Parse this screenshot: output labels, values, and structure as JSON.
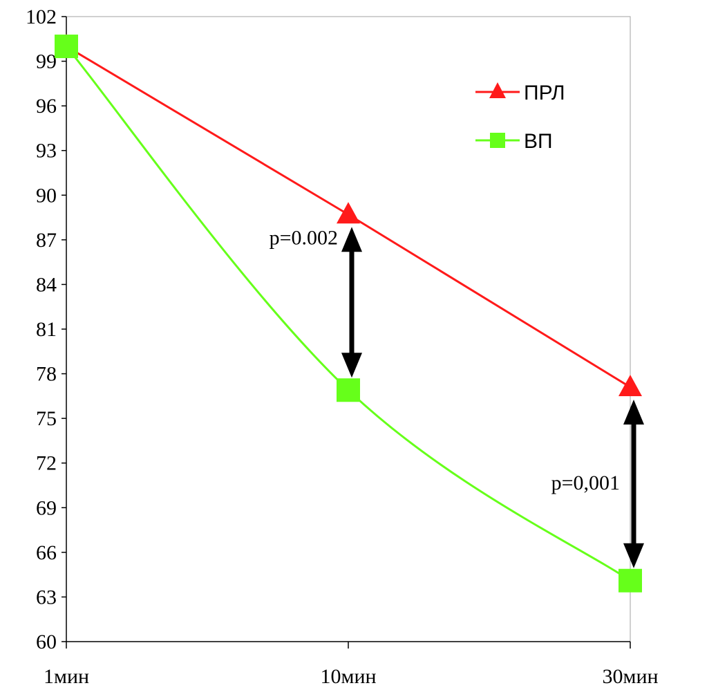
{
  "chart_data": {
    "type": "line",
    "title": "",
    "xlabel": "",
    "ylabel": "",
    "categories": [
      "1мин",
      "10мин",
      "30мин"
    ],
    "ylim": [
      60,
      102
    ],
    "yticks": [
      "60",
      "63",
      "66",
      "69",
      "72",
      "75",
      "78",
      "81",
      "84",
      "87",
      "90",
      "93",
      "96",
      "99",
      "102"
    ],
    "grid": false,
    "legend_position": "top-right",
    "series": [
      {
        "name": "ПРЛ",
        "values": [
          100,
          88.7,
          77.1
        ],
        "color": "#ff1a1a",
        "marker": "triangle"
      },
      {
        "name": "ВП",
        "values": [
          100,
          76.9,
          64.1
        ],
        "color": "#66ff1a",
        "marker": "square"
      }
    ],
    "annotations": [
      {
        "text": "p=0.002",
        "category_index": 1
      },
      {
        "text": "p=0,001",
        "category_index": 2
      }
    ]
  }
}
